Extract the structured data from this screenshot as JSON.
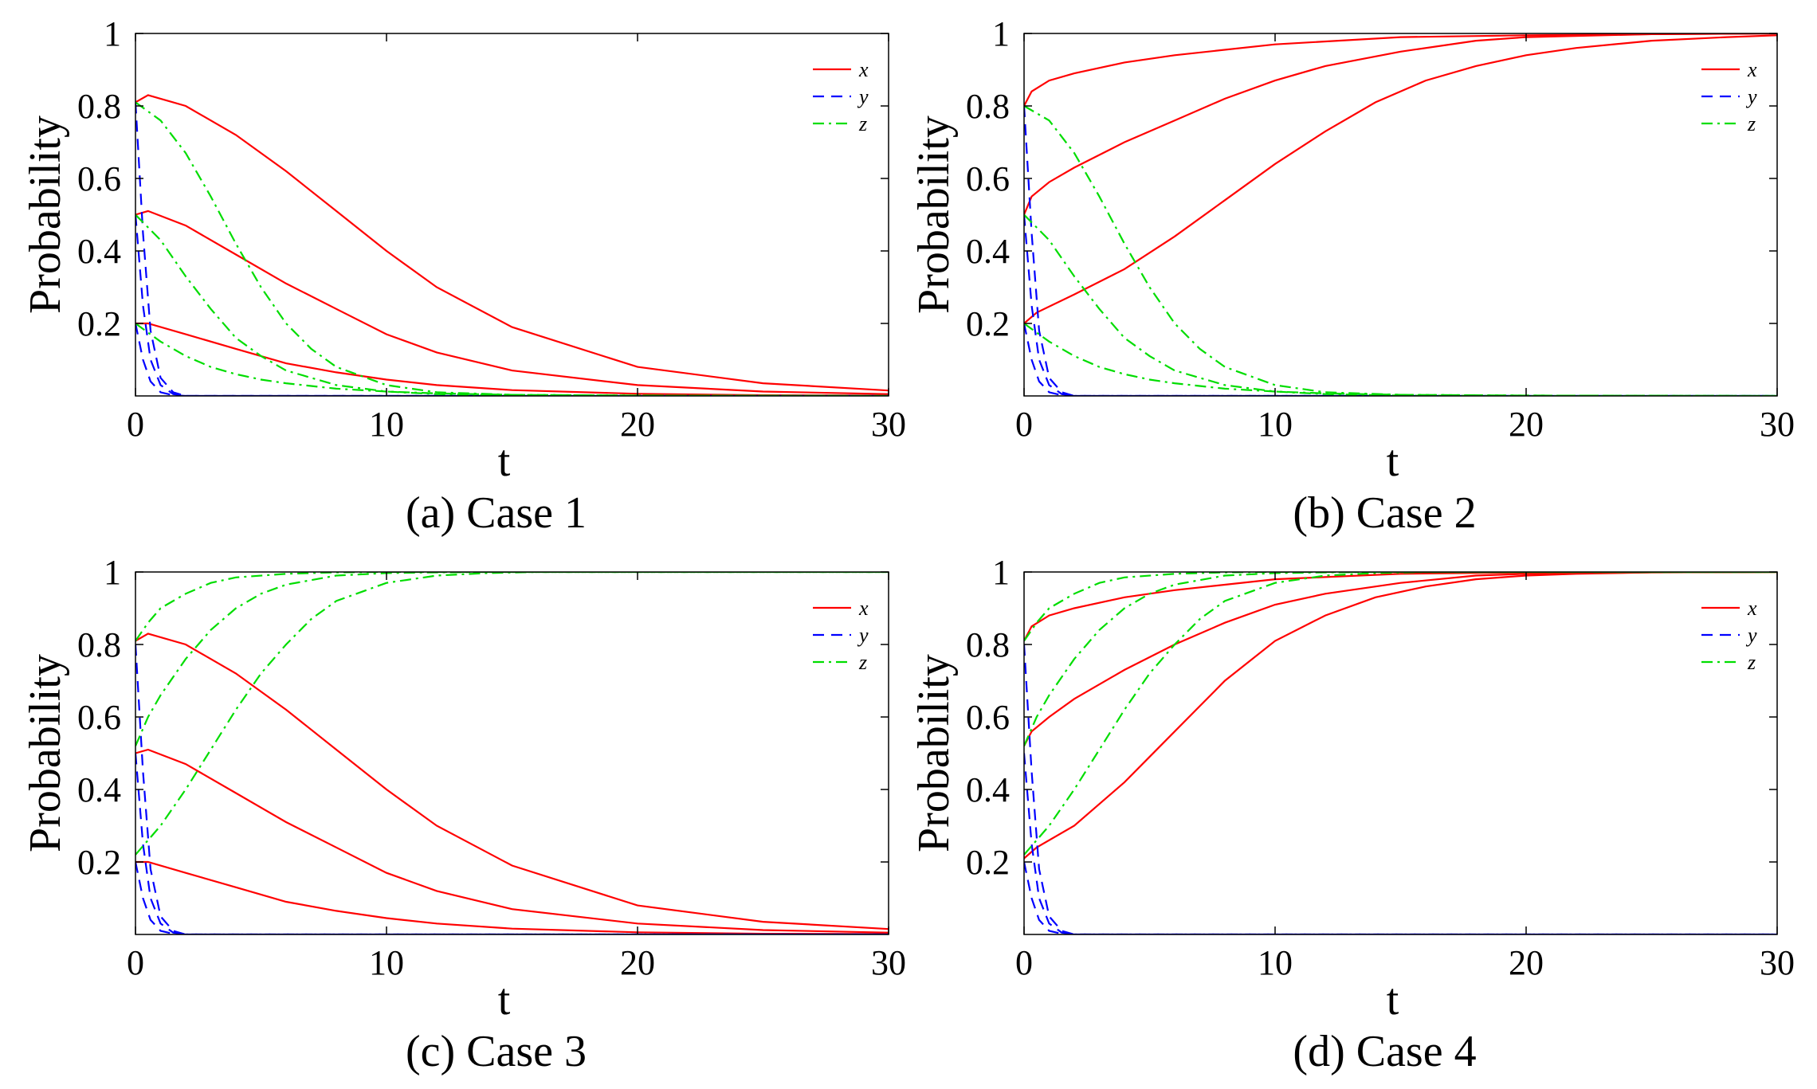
{
  "chart_data": [
    {
      "type": "line",
      "caption": "(a) Case 1",
      "xlabel": "t",
      "ylabel": "Probability",
      "xlim": [
        0,
        30
      ],
      "ylim": [
        0,
        1
      ],
      "xticks": [
        "0",
        "10",
        "20",
        "30"
      ],
      "yticks": [
        "0.2",
        "0.4",
        "0.6",
        "0.8",
        "1"
      ],
      "legend": {
        "placement": "top-right",
        "entries": [
          "x",
          "y",
          "z"
        ]
      },
      "colors": {
        "x": "#ff0000",
        "y": "#0000ff",
        "z": "#00dd00"
      },
      "series": [
        {
          "name": "x",
          "x": [
            0,
            0.5,
            2,
            4,
            6,
            8,
            10,
            12,
            15,
            20,
            25,
            30
          ],
          "values": [
            0.81,
            0.83,
            0.8,
            0.72,
            0.62,
            0.51,
            0.4,
            0.3,
            0.19,
            0.08,
            0.035,
            0.015
          ]
        },
        {
          "name": "x",
          "x": [
            0,
            0.5,
            2,
            4,
            6,
            8,
            10,
            12,
            15,
            20,
            25,
            30
          ],
          "values": [
            0.5,
            0.51,
            0.47,
            0.39,
            0.31,
            0.24,
            0.17,
            0.12,
            0.07,
            0.03,
            0.012,
            0.005
          ]
        },
        {
          "name": "x",
          "x": [
            0,
            0.5,
            2,
            4,
            6,
            8,
            10,
            12,
            15,
            20,
            25,
            30
          ],
          "values": [
            0.2,
            0.2,
            0.17,
            0.13,
            0.09,
            0.065,
            0.045,
            0.03,
            0.016,
            0.006,
            0.002,
            0.001
          ]
        },
        {
          "name": "y",
          "x": [
            0,
            0.3,
            0.6,
            1,
            1.5,
            2,
            30
          ],
          "values": [
            0.81,
            0.45,
            0.18,
            0.05,
            0.01,
            0,
            0
          ]
        },
        {
          "name": "y",
          "x": [
            0,
            0.3,
            0.6,
            1,
            1.5,
            2,
            30
          ],
          "values": [
            0.5,
            0.25,
            0.1,
            0.03,
            0.005,
            0,
            0
          ]
        },
        {
          "name": "y",
          "x": [
            0,
            0.3,
            0.6,
            1,
            1.5,
            2,
            30
          ],
          "values": [
            0.2,
            0.1,
            0.04,
            0.01,
            0.002,
            0,
            0
          ]
        },
        {
          "name": "z",
          "x": [
            0,
            1,
            2,
            3,
            4,
            5,
            6,
            7,
            8,
            10,
            12,
            15,
            20,
            30
          ],
          "values": [
            0.81,
            0.76,
            0.67,
            0.55,
            0.42,
            0.3,
            0.2,
            0.13,
            0.08,
            0.03,
            0.01,
            0.003,
            0.001,
            0
          ]
        },
        {
          "name": "z",
          "x": [
            0,
            1,
            2,
            3,
            4,
            5,
            6,
            8,
            10,
            12,
            15,
            20,
            30
          ],
          "values": [
            0.5,
            0.43,
            0.33,
            0.24,
            0.16,
            0.11,
            0.07,
            0.03,
            0.012,
            0.005,
            0.001,
            0,
            0
          ]
        },
        {
          "name": "z",
          "x": [
            0,
            1,
            2,
            3,
            4,
            5,
            6,
            8,
            10,
            12,
            15,
            20,
            30
          ],
          "values": [
            0.2,
            0.15,
            0.11,
            0.08,
            0.06,
            0.045,
            0.035,
            0.02,
            0.012,
            0.007,
            0.003,
            0.001,
            0
          ]
        }
      ]
    },
    {
      "type": "line",
      "caption": "(b) Case 2",
      "xlabel": "t",
      "ylabel": "Probability",
      "xlim": [
        0,
        30
      ],
      "ylim": [
        0,
        1
      ],
      "xticks": [
        "0",
        "10",
        "20",
        "30"
      ],
      "yticks": [
        "0.2",
        "0.4",
        "0.6",
        "0.8",
        "1"
      ],
      "legend": {
        "placement": "top-right",
        "entries": [
          "x",
          "y",
          "z"
        ]
      },
      "colors": {
        "x": "#ff0000",
        "y": "#0000ff",
        "z": "#00dd00"
      },
      "series": [
        {
          "name": "x",
          "x": [
            0,
            0.3,
            1,
            2,
            4,
            6,
            10,
            15,
            20,
            25,
            30
          ],
          "values": [
            0.8,
            0.84,
            0.87,
            0.89,
            0.92,
            0.94,
            0.97,
            0.99,
            0.995,
            0.998,
            1.0
          ]
        },
        {
          "name": "x",
          "x": [
            0,
            0.3,
            1,
            2,
            4,
            6,
            8,
            10,
            12,
            15,
            18,
            20,
            25,
            30
          ],
          "values": [
            0.5,
            0.55,
            0.59,
            0.63,
            0.7,
            0.76,
            0.82,
            0.87,
            0.91,
            0.95,
            0.98,
            0.99,
            0.998,
            1.0
          ]
        },
        {
          "name": "x",
          "x": [
            0,
            0.5,
            2,
            4,
            6,
            8,
            10,
            12,
            14,
            16,
            18,
            20,
            22,
            25,
            28,
            30
          ],
          "values": [
            0.2,
            0.23,
            0.28,
            0.35,
            0.44,
            0.54,
            0.64,
            0.73,
            0.81,
            0.87,
            0.91,
            0.94,
            0.96,
            0.98,
            0.99,
            0.995
          ]
        },
        {
          "name": "y",
          "x": [
            0,
            0.3,
            0.6,
            1,
            1.5,
            2,
            30
          ],
          "values": [
            0.8,
            0.45,
            0.18,
            0.05,
            0.01,
            0,
            0
          ]
        },
        {
          "name": "y",
          "x": [
            0,
            0.3,
            0.6,
            1,
            1.5,
            2,
            30
          ],
          "values": [
            0.5,
            0.25,
            0.1,
            0.03,
            0.005,
            0,
            0
          ]
        },
        {
          "name": "y",
          "x": [
            0,
            0.3,
            0.6,
            1,
            1.5,
            2,
            30
          ],
          "values": [
            0.2,
            0.1,
            0.04,
            0.01,
            0.002,
            0,
            0
          ]
        },
        {
          "name": "z",
          "x": [
            0,
            1,
            2,
            3,
            4,
            5,
            6,
            7,
            8,
            10,
            12,
            15,
            20,
            30
          ],
          "values": [
            0.8,
            0.76,
            0.67,
            0.55,
            0.42,
            0.3,
            0.2,
            0.13,
            0.08,
            0.03,
            0.01,
            0.003,
            0.001,
            0
          ]
        },
        {
          "name": "z",
          "x": [
            0,
            1,
            2,
            3,
            4,
            5,
            6,
            8,
            10,
            12,
            15,
            20,
            30
          ],
          "values": [
            0.5,
            0.43,
            0.33,
            0.24,
            0.16,
            0.11,
            0.07,
            0.03,
            0.012,
            0.005,
            0.001,
            0,
            0
          ]
        },
        {
          "name": "z",
          "x": [
            0,
            1,
            2,
            3,
            4,
            5,
            6,
            8,
            10,
            12,
            15,
            20,
            30
          ],
          "values": [
            0.2,
            0.15,
            0.11,
            0.08,
            0.06,
            0.045,
            0.035,
            0.02,
            0.012,
            0.007,
            0.003,
            0.001,
            0
          ]
        }
      ]
    },
    {
      "type": "line",
      "caption": "(c) Case 3",
      "xlabel": "t",
      "ylabel": "Probability",
      "xlim": [
        0,
        30
      ],
      "ylim": [
        0,
        1
      ],
      "xticks": [
        "0",
        "10",
        "20",
        "30"
      ],
      "yticks": [
        "0.2",
        "0.4",
        "0.6",
        "0.8",
        "1"
      ],
      "legend": {
        "placement": "top-right",
        "entries": [
          "x",
          "y",
          "z"
        ]
      },
      "colors": {
        "x": "#ff0000",
        "y": "#0000ff",
        "z": "#00dd00"
      },
      "series": [
        {
          "name": "x",
          "x": [
            0,
            0.5,
            2,
            4,
            6,
            8,
            10,
            12,
            15,
            20,
            25,
            30
          ],
          "values": [
            0.81,
            0.83,
            0.8,
            0.72,
            0.62,
            0.51,
            0.4,
            0.3,
            0.19,
            0.08,
            0.035,
            0.015
          ]
        },
        {
          "name": "x",
          "x": [
            0,
            0.5,
            2,
            4,
            6,
            8,
            10,
            12,
            15,
            20,
            25,
            30
          ],
          "values": [
            0.5,
            0.51,
            0.47,
            0.39,
            0.31,
            0.24,
            0.17,
            0.12,
            0.07,
            0.03,
            0.012,
            0.005
          ]
        },
        {
          "name": "x",
          "x": [
            0,
            0.5,
            2,
            4,
            6,
            8,
            10,
            12,
            15,
            20,
            25,
            30
          ],
          "values": [
            0.2,
            0.2,
            0.17,
            0.13,
            0.09,
            0.065,
            0.045,
            0.03,
            0.016,
            0.006,
            0.002,
            0.001
          ]
        },
        {
          "name": "y",
          "x": [
            0,
            0.3,
            0.6,
            1,
            1.5,
            2,
            30
          ],
          "values": [
            0.8,
            0.45,
            0.18,
            0.05,
            0.01,
            0,
            0
          ]
        },
        {
          "name": "y",
          "x": [
            0,
            0.3,
            0.6,
            1,
            1.5,
            2,
            30
          ],
          "values": [
            0.5,
            0.25,
            0.1,
            0.03,
            0.005,
            0,
            0
          ]
        },
        {
          "name": "y",
          "x": [
            0,
            0.3,
            0.6,
            1,
            1.5,
            2,
            30
          ],
          "values": [
            0.2,
            0.1,
            0.04,
            0.01,
            0.002,
            0,
            0
          ]
        },
        {
          "name": "z",
          "x": [
            0,
            0.5,
            1,
            2,
            3,
            4,
            6,
            8,
            10,
            30
          ],
          "values": [
            0.81,
            0.86,
            0.9,
            0.94,
            0.97,
            0.985,
            0.995,
            0.999,
            1.0,
            1.0
          ]
        },
        {
          "name": "z",
          "x": [
            0,
            0.5,
            1,
            2,
            3,
            4,
            5,
            6,
            8,
            10,
            12,
            14,
            30
          ],
          "values": [
            0.52,
            0.6,
            0.66,
            0.76,
            0.84,
            0.9,
            0.94,
            0.965,
            0.99,
            0.997,
            0.999,
            1.0,
            1.0
          ]
        },
        {
          "name": "z",
          "x": [
            0,
            1,
            2,
            3,
            4,
            5,
            6,
            7,
            8,
            10,
            12,
            14,
            16,
            30
          ],
          "values": [
            0.22,
            0.3,
            0.4,
            0.51,
            0.62,
            0.72,
            0.8,
            0.87,
            0.92,
            0.97,
            0.99,
            0.997,
            1.0,
            1.0
          ]
        }
      ]
    },
    {
      "type": "line",
      "caption": "(d) Case 4",
      "xlabel": "t",
      "ylabel": "Probability",
      "xlim": [
        0,
        30
      ],
      "ylim": [
        0,
        1
      ],
      "xticks": [
        "0",
        "10",
        "20",
        "30"
      ],
      "yticks": [
        "0.2",
        "0.4",
        "0.6",
        "0.8",
        "1"
      ],
      "legend": {
        "placement": "top-right",
        "entries": [
          "x",
          "y",
          "z"
        ]
      },
      "colors": {
        "x": "#ff0000",
        "y": "#0000ff",
        "z": "#00dd00"
      },
      "series": [
        {
          "name": "x",
          "x": [
            0,
            0.3,
            1,
            2,
            4,
            6,
            10,
            15,
            20,
            30
          ],
          "values": [
            0.81,
            0.85,
            0.88,
            0.9,
            0.93,
            0.95,
            0.98,
            0.995,
            0.999,
            1.0
          ]
        },
        {
          "name": "x",
          "x": [
            0,
            0.3,
            1,
            2,
            4,
            6,
            8,
            10,
            12,
            15,
            18,
            20,
            25,
            30
          ],
          "values": [
            0.52,
            0.56,
            0.6,
            0.65,
            0.73,
            0.8,
            0.86,
            0.91,
            0.94,
            0.97,
            0.99,
            0.995,
            0.999,
            1.0
          ]
        },
        {
          "name": "x",
          "x": [
            0,
            0.5,
            2,
            4,
            6,
            8,
            10,
            12,
            14,
            16,
            18,
            20,
            22,
            25,
            30
          ],
          "values": [
            0.21,
            0.24,
            0.3,
            0.42,
            0.56,
            0.7,
            0.81,
            0.88,
            0.93,
            0.96,
            0.98,
            0.99,
            0.995,
            0.999,
            1.0
          ]
        },
        {
          "name": "y",
          "x": [
            0,
            0.3,
            0.6,
            1,
            1.5,
            2,
            30
          ],
          "values": [
            0.8,
            0.45,
            0.18,
            0.05,
            0.01,
            0,
            0
          ]
        },
        {
          "name": "y",
          "x": [
            0,
            0.3,
            0.6,
            1,
            1.5,
            2,
            30
          ],
          "values": [
            0.5,
            0.25,
            0.1,
            0.03,
            0.005,
            0,
            0
          ]
        },
        {
          "name": "y",
          "x": [
            0,
            0.3,
            0.6,
            1,
            1.5,
            2,
            30
          ],
          "values": [
            0.2,
            0.1,
            0.04,
            0.01,
            0.002,
            0,
            0
          ]
        },
        {
          "name": "z",
          "x": [
            0,
            0.5,
            1,
            2,
            3,
            4,
            6,
            8,
            10,
            30
          ],
          "values": [
            0.81,
            0.86,
            0.9,
            0.94,
            0.97,
            0.985,
            0.995,
            0.999,
            1.0,
            1.0
          ]
        },
        {
          "name": "z",
          "x": [
            0,
            0.5,
            1,
            2,
            3,
            4,
            5,
            6,
            8,
            10,
            12,
            14,
            30
          ],
          "values": [
            0.52,
            0.6,
            0.66,
            0.76,
            0.84,
            0.9,
            0.94,
            0.965,
            0.99,
            0.997,
            0.999,
            1.0,
            1.0
          ]
        },
        {
          "name": "z",
          "x": [
            0,
            1,
            2,
            3,
            4,
            5,
            6,
            7,
            8,
            10,
            12,
            14,
            16,
            30
          ],
          "values": [
            0.22,
            0.3,
            0.4,
            0.51,
            0.62,
            0.72,
            0.8,
            0.87,
            0.92,
            0.97,
            0.99,
            0.997,
            1.0,
            1.0
          ]
        }
      ]
    }
  ]
}
